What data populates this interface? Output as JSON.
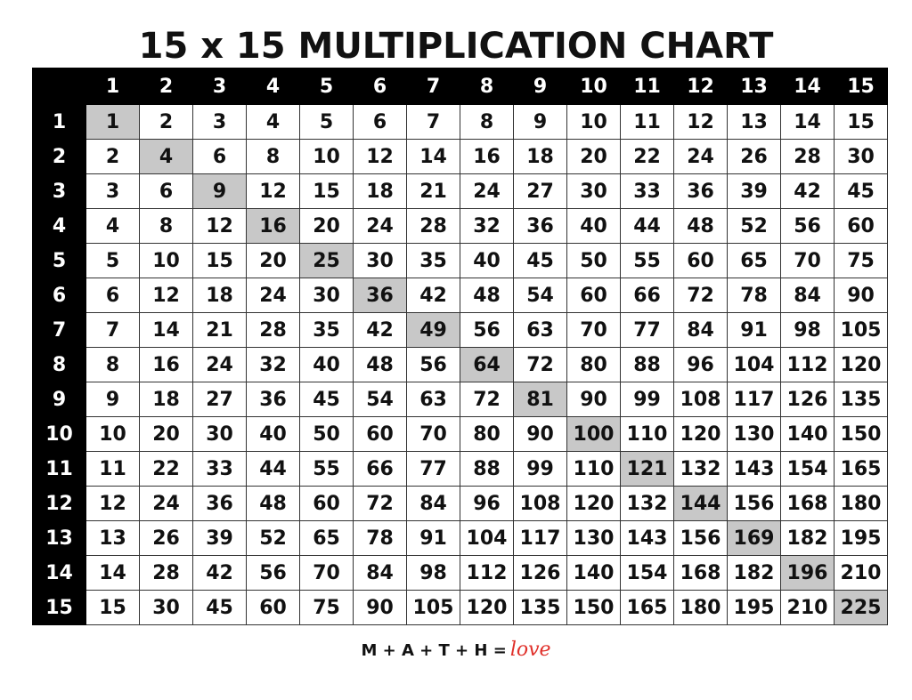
{
  "title": "15 x 15 MULTIPLICATION CHART",
  "table": {
    "column_headers": [
      1,
      2,
      3,
      4,
      5,
      6,
      7,
      8,
      9,
      10,
      11,
      12,
      13,
      14,
      15
    ],
    "row_headers": [
      1,
      2,
      3,
      4,
      5,
      6,
      7,
      8,
      9,
      10,
      11,
      12,
      13,
      14,
      15
    ],
    "rows": [
      [
        1,
        2,
        3,
        4,
        5,
        6,
        7,
        8,
        9,
        10,
        11,
        12,
        13,
        14,
        15
      ],
      [
        2,
        4,
        6,
        8,
        10,
        12,
        14,
        16,
        18,
        20,
        22,
        24,
        26,
        28,
        30
      ],
      [
        3,
        6,
        9,
        12,
        15,
        18,
        21,
        24,
        27,
        30,
        33,
        36,
        39,
        42,
        45
      ],
      [
        4,
        8,
        12,
        16,
        20,
        24,
        28,
        32,
        36,
        40,
        44,
        48,
        52,
        56,
        60
      ],
      [
        5,
        10,
        15,
        20,
        25,
        30,
        35,
        40,
        45,
        50,
        55,
        60,
        65,
        70,
        75
      ],
      [
        6,
        12,
        18,
        24,
        30,
        36,
        42,
        48,
        54,
        60,
        66,
        72,
        78,
        84,
        90
      ],
      [
        7,
        14,
        21,
        28,
        35,
        42,
        49,
        56,
        63,
        70,
        77,
        84,
        91,
        98,
        105
      ],
      [
        8,
        16,
        24,
        32,
        40,
        48,
        56,
        64,
        72,
        80,
        88,
        96,
        104,
        112,
        120
      ],
      [
        9,
        18,
        27,
        36,
        45,
        54,
        63,
        72,
        81,
        90,
        99,
        108,
        117,
        126,
        135
      ],
      [
        10,
        20,
        30,
        40,
        50,
        60,
        70,
        80,
        90,
        100,
        110,
        120,
        130,
        140,
        150
      ],
      [
        11,
        22,
        33,
        44,
        55,
        66,
        77,
        88,
        99,
        110,
        121,
        132,
        143,
        154,
        165
      ],
      [
        12,
        24,
        36,
        48,
        60,
        72,
        84,
        96,
        108,
        120,
        132,
        144,
        156,
        168,
        180
      ],
      [
        13,
        26,
        39,
        52,
        65,
        78,
        91,
        104,
        117,
        130,
        143,
        156,
        169,
        182,
        195
      ],
      [
        14,
        28,
        42,
        56,
        70,
        84,
        98,
        112,
        126,
        140,
        154,
        168,
        182,
        196,
        210
      ],
      [
        15,
        30,
        45,
        60,
        75,
        90,
        105,
        120,
        135,
        150,
        165,
        180,
        195,
        210,
        225
      ]
    ]
  },
  "footer": {
    "text": "M + A + T + H =",
    "script": "love"
  }
}
